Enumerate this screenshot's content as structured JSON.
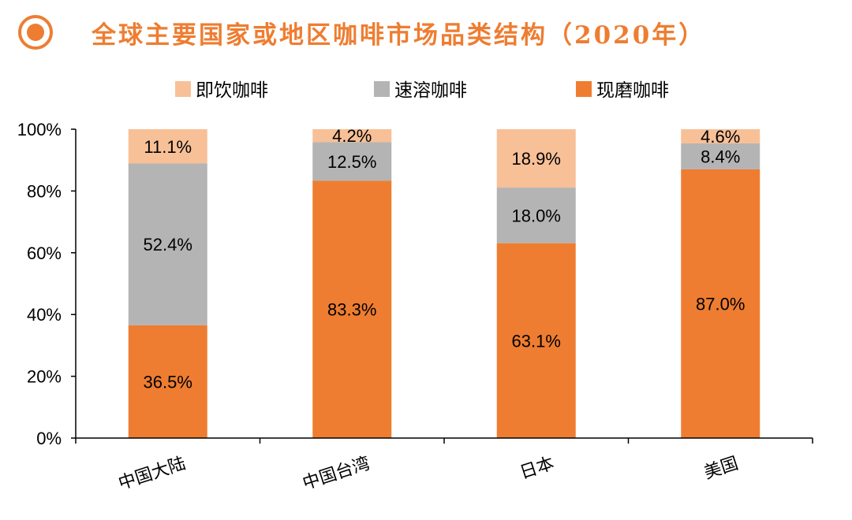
{
  "header": {
    "title": "全球主要国家或地区咖啡市场品类结构（2020年）",
    "icon": "target-circle-icon",
    "accent_color": "#ee7d31"
  },
  "chart_data": {
    "type": "bar",
    "stacked": true,
    "categories": [
      "中国大陆",
      "中国台湾",
      "日本",
      "美国"
    ],
    "series": [
      {
        "name": "现磨咖啡",
        "values": [
          36.5,
          83.3,
          63.1,
          87.0
        ],
        "color": "#ee7d31"
      },
      {
        "name": "速溶咖啡",
        "values": [
          52.4,
          12.5,
          18.0,
          8.4
        ],
        "color": "#b4b4b4"
      },
      {
        "name": "即饮咖啡",
        "values": [
          11.1,
          4.2,
          18.9,
          4.6
        ],
        "color": "#f8c097"
      }
    ],
    "legend_order": [
      "即饮咖啡",
      "速溶咖啡",
      "现磨咖啡"
    ],
    "y_ticks": [
      "0%",
      "20%",
      "40%",
      "60%",
      "80%",
      "100%"
    ],
    "ylim": [
      0,
      100
    ],
    "value_format": "percent_1dp",
    "grid": false,
    "legend_position": "top-center",
    "category_label_rotation": "rotated"
  }
}
